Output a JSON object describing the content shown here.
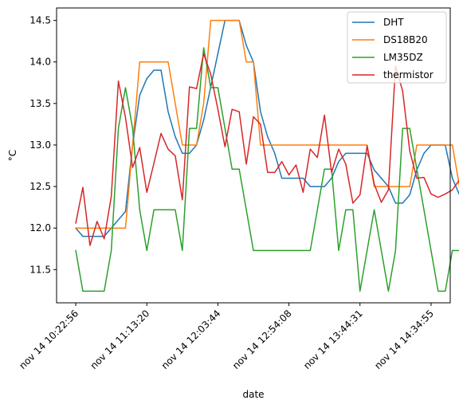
{
  "chart_data": {
    "type": "line",
    "xlabel": "date",
    "ylabel": "°C",
    "x_ticks": [
      "nov 14 10:22:56",
      "nov 14 11:13:20",
      "nov 14 12:03:44",
      "nov 14 12:54:08",
      "nov 14 13:44:31",
      "nov 14 14:34:55"
    ],
    "x_tick_positions": [
      0,
      10,
      20,
      30,
      40,
      50
    ],
    "xlim": [
      -2.7,
      52.7
    ],
    "y_ticks": [
      11.5,
      12.0,
      12.5,
      13.0,
      13.5,
      14.0,
      14.5
    ],
    "ylim": [
      11.1,
      14.65
    ],
    "grid": false,
    "legend_position": "top-right",
    "series": [
      {
        "name": "DHT",
        "color": "#1f77b4",
        "values": [
          12.0,
          11.9,
          11.9,
          11.9,
          11.9,
          12.0,
          12.1,
          12.2,
          13.0,
          13.6,
          13.8,
          13.9,
          13.9,
          13.4,
          13.1,
          12.9,
          12.9,
          13.0,
          13.3,
          13.7,
          14.1,
          14.5,
          14.5,
          14.5,
          14.2,
          14.0,
          13.4,
          13.1,
          12.9,
          12.6,
          12.6,
          12.6,
          12.6,
          12.5,
          12.5,
          12.5,
          12.6,
          12.8,
          12.9,
          12.9,
          12.9,
          12.9,
          12.7,
          12.6,
          12.5,
          12.3,
          12.3,
          12.4,
          12.7,
          12.9,
          13.0,
          13.0,
          13.0,
          12.6,
          12.4,
          12.3
        ]
      },
      {
        "name": "DS18B20",
        "color": "#ff7f0e",
        "values": [
          12.0,
          12.0,
          12.0,
          12.0,
          12.0,
          12.0,
          12.0,
          12.0,
          13.0,
          14.0,
          14.0,
          14.0,
          14.0,
          14.0,
          13.5,
          13.0,
          13.0,
          13.0,
          13.5,
          14.5,
          14.5,
          14.5,
          14.5,
          14.5,
          14.0,
          14.0,
          13.0,
          13.0,
          13.0,
          13.0,
          13.0,
          13.0,
          13.0,
          13.0,
          13.0,
          13.0,
          13.0,
          13.0,
          13.0,
          13.0,
          13.0,
          13.0,
          12.5,
          12.5,
          12.5,
          12.5,
          12.5,
          12.5,
          13.0,
          13.0,
          13.0,
          13.0,
          13.0,
          13.0,
          12.5,
          12.5
        ]
      },
      {
        "name": "LM35DZ",
        "color": "#2ca02c",
        "values": [
          11.73,
          11.24,
          11.24,
          11.24,
          11.24,
          11.73,
          13.2,
          13.69,
          13.2,
          12.22,
          11.73,
          12.22,
          12.22,
          12.22,
          12.22,
          11.73,
          13.2,
          13.2,
          14.17,
          13.69,
          13.69,
          13.2,
          12.71,
          12.71,
          12.22,
          11.73,
          11.73,
          11.73,
          11.73,
          11.73,
          11.73,
          11.73,
          11.73,
          11.73,
          12.22,
          12.71,
          12.71,
          11.73,
          12.22,
          12.22,
          11.24,
          11.73,
          12.22,
          11.73,
          11.24,
          11.73,
          13.2,
          13.2,
          12.71,
          12.22,
          11.73,
          11.24,
          11.24,
          11.73,
          11.73,
          11.24
        ]
      },
      {
        "name": "thermistor",
        "color": "#d62728",
        "values": [
          12.06,
          12.49,
          11.79,
          12.08,
          11.87,
          12.38,
          13.77,
          13.33,
          12.73,
          12.97,
          12.43,
          12.78,
          13.14,
          12.95,
          12.87,
          12.34,
          13.7,
          13.68,
          14.1,
          13.85,
          13.43,
          12.98,
          13.43,
          13.4,
          12.77,
          13.34,
          13.25,
          12.67,
          12.67,
          12.8,
          12.64,
          12.76,
          12.43,
          12.95,
          12.85,
          13.36,
          12.67,
          12.95,
          12.77,
          12.3,
          12.4,
          12.99,
          12.53,
          12.31,
          12.46,
          13.95,
          13.65,
          12.93,
          12.6,
          12.61,
          12.41,
          12.37,
          12.41,
          12.46,
          12.58
        ]
      }
    ]
  }
}
